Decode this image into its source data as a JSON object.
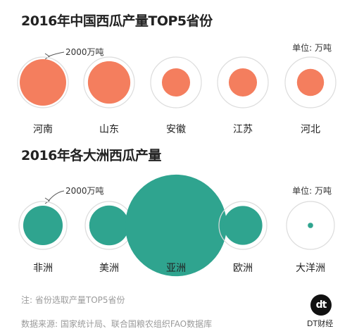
{
  "chart_data": [
    {
      "type": "bubble",
      "title": "2016年中国西瓜产量TOP5省份",
      "unit_label": "单位: 万吨",
      "reference_label": "2000万吨",
      "reference_value": 2000,
      "categories": [
        "河南",
        "山东",
        "安徽",
        "江苏",
        "河北"
      ],
      "values": [
        1680,
        1400,
        620,
        620,
        570
      ],
      "colors": {
        "fill": "#F47E5E",
        "ring": "#dcdcdc"
      }
    },
    {
      "type": "bubble",
      "title": "2016年各大洲西瓜产量",
      "unit_label": "单位: 万吨",
      "reference_label": "2000万吨",
      "reference_value": 2000,
      "categories": [
        "非洲",
        "美洲",
        "亚洲",
        "欧洲",
        "大洋洲"
      ],
      "values": [
        1360,
        1380,
        9000,
        1320,
        25
      ],
      "colors": {
        "fill": "#2FA48F",
        "ring": "#dcdcdc"
      }
    }
  ],
  "footer": {
    "note": "注: 省份选取产量TOP5省份",
    "source": "数据来源: 国家统计局、联合国粮农组织FAO数据库",
    "logo_mark": "dt",
    "logo_text": "DT财经"
  }
}
